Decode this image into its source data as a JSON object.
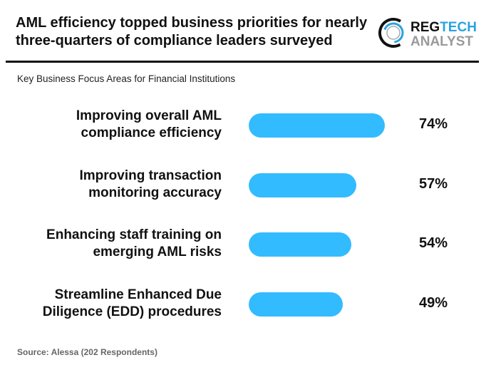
{
  "header": {
    "title": "AML efficiency topped business priorities for nearly three-quarters of compliance leaders surveyed",
    "logo_text": "REGTECH ANALYST",
    "logo_colors": {
      "reg": "#111111",
      "tech": "#29a3e0",
      "analyst": "#9a9a9a"
    }
  },
  "chart_data": {
    "type": "bar",
    "orientation": "horizontal",
    "title": "Key Business Focus Areas for Financial Institutions",
    "categories": [
      "Improving overall AML compliance efficiency",
      "Improving transaction monitoring accuracy",
      "Enhancing staff training on emerging AML risks",
      "Streamline Enhanced Due Diligence (EDD) procedures"
    ],
    "category_lines": [
      [
        "Improving overall AML",
        "compliance efficiency"
      ],
      [
        "Improving transaction",
        "monitoring accuracy"
      ],
      [
        "Enhancing staff training on",
        "emerging AML risks"
      ],
      [
        "Streamline Enhanced Due",
        "Diligence (EDD) procedures"
      ]
    ],
    "values": [
      74,
      57,
      54,
      49
    ],
    "data_labels": [
      "74%",
      "57%",
      "54%",
      "49%"
    ],
    "unit": "%",
    "bar_color": "#33bbff",
    "grid": false
  },
  "footer": {
    "source": "Source: Alessa (202 Respondents)"
  }
}
